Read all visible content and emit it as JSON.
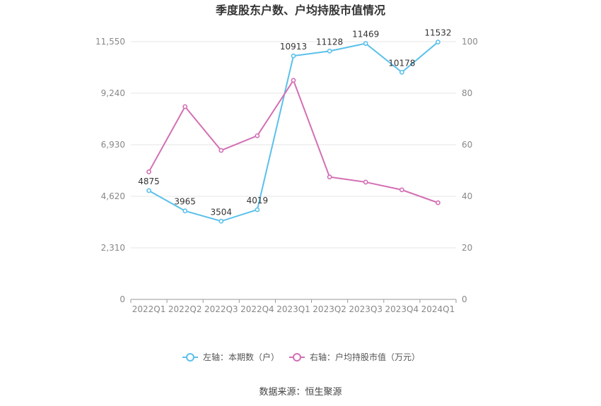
{
  "chart_data": {
    "type": "line",
    "title": "季度股东户数、户均持股市值情况",
    "categories": [
      "2022Q1",
      "2022Q2",
      "2022Q3",
      "2022Q4",
      "2023Q1",
      "2023Q2",
      "2023Q3",
      "2023Q4",
      "2024Q1"
    ],
    "y_left": {
      "ticks": [
        "0",
        "2,310",
        "4,620",
        "6,930",
        "9,240",
        "11,550"
      ],
      "range": [
        0,
        11550
      ]
    },
    "y_right": {
      "ticks": [
        "0",
        "20",
        "40",
        "60",
        "80",
        "100"
      ],
      "range": [
        0,
        100
      ]
    },
    "series": [
      {
        "name": "左轴：本期数（户）",
        "axis": "left",
        "color": "#5bc0eb",
        "values": [
          4875,
          3965,
          3504,
          4019,
          10913,
          11128,
          11469,
          10178,
          11532
        ],
        "labels": [
          "4875",
          "3965",
          "3504",
          "4019",
          "10913",
          "11128",
          "11469",
          "10178",
          "11532"
        ]
      },
      {
        "name": "右轴：户均持股市值（万元）",
        "axis": "right",
        "color": "#d36fb4",
        "values": [
          49.5,
          74.8,
          57.8,
          63.5,
          85.0,
          47.5,
          45.5,
          42.5,
          37.5
        ]
      }
    ],
    "legend_position": "bottom",
    "grid": true
  },
  "footer": {
    "source": "数据来源：恒生聚源"
  }
}
